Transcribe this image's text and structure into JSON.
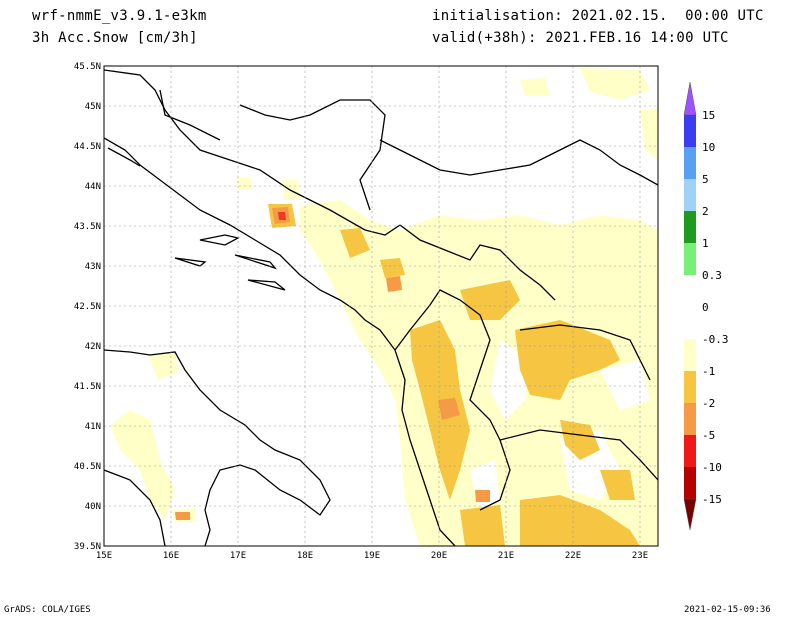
{
  "header": {
    "model": "wrf-nmmE_v3.9.1-e3km",
    "field": "3h Acc.Snow [cm/3h]",
    "init": "initialisation: 2021.02.15.  00:00 UTC",
    "valid": "valid(+38h): 2021.FEB.16 14:00 UTC"
  },
  "footer": {
    "left": "GrADS: COLA/IGES",
    "right": "2021-02-15-09:36"
  },
  "map": {
    "lon_ticks": [
      "15E",
      "16E",
      "17E",
      "18E",
      "19E",
      "20E",
      "21E",
      "22E",
      "23E"
    ],
    "lat_ticks": [
      "45.5N",
      "45N",
      "44.5N",
      "44N",
      "43.5N",
      "43N",
      "42.5N",
      "42N",
      "41.5N",
      "41N",
      "40.5N",
      "40N",
      "39.5N"
    ],
    "colors": {
      "c1": "#ffffc8",
      "c2": "#f6c542",
      "c3": "#f59a46",
      "c4": "#ee3a22",
      "coast": "#000000"
    }
  },
  "colorbar": {
    "labels": [
      "15",
      "10",
      "5",
      "2",
      "1",
      "0.3",
      "0",
      "-0.3",
      "-1",
      "-2",
      "-5",
      "-10",
      "-15"
    ],
    "colors": [
      "#3c3cf0",
      "#5aa0f0",
      "#a0d2f5",
      "#1e9b1e",
      "#78f078",
      "#ffffff",
      "#ffffff",
      "#ffffc8",
      "#f6c542",
      "#f59a46",
      "#ee1a1a",
      "#b40000"
    ],
    "top_arrow_color": "#a050ff",
    "bottom_arrow_color": "#780000"
  }
}
